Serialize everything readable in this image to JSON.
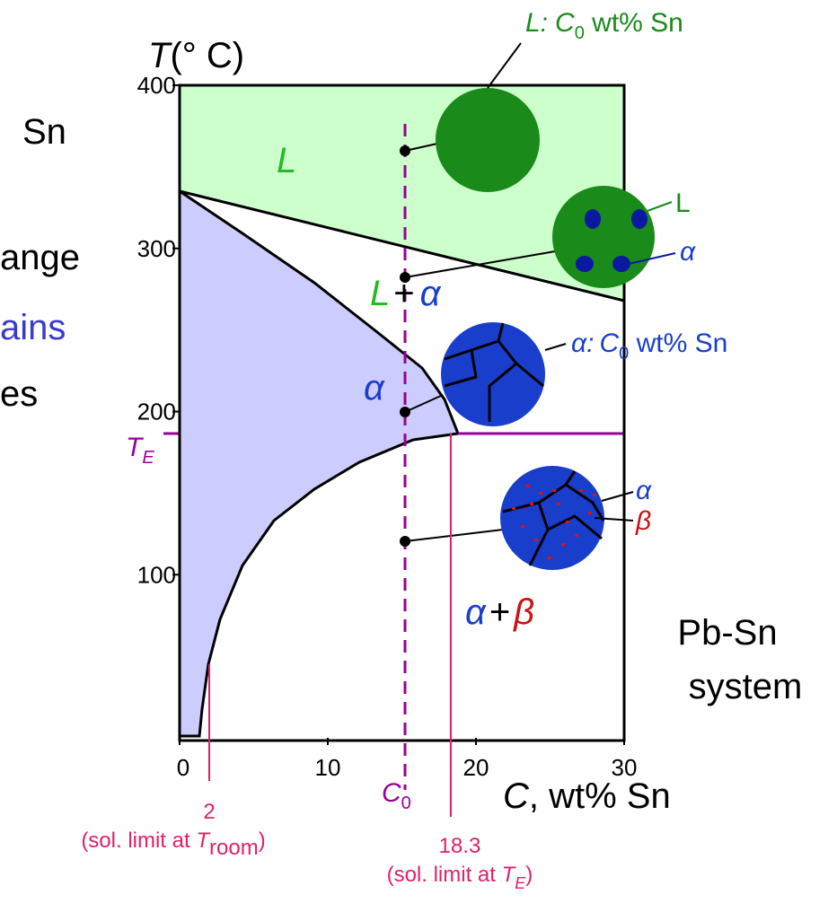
{
  "chart_data": {
    "type": "phase-diagram",
    "xlim": [
      0,
      30
    ],
    "ylim": [
      0,
      400
    ],
    "xticks": [
      0,
      10,
      20,
      30
    ],
    "yticks": [
      100,
      200,
      300,
      400
    ],
    "y_label": {
      "italic": "T",
      "rest": "(°  C)"
    },
    "x_label": {
      "italic": "C",
      "rest": ", wt% Sn"
    },
    "left_text": [
      "Sn",
      "ange",
      "ains",
      "es"
    ],
    "regions": {
      "liquid": "L",
      "two_phase": {
        "a": "L",
        "plus": "+",
        "b": "α"
      },
      "alpha": "α",
      "alpha_beta": {
        "a": "α",
        "plus": "+",
        "b": "β"
      }
    },
    "system": [
      "Pb-Sn",
      "system"
    ],
    "te": {
      "main": "T",
      "sub": "E"
    },
    "c0": {
      "main": "C",
      "sub": "0"
    },
    "callouts": {
      "liquid": {
        "a": "L:",
        "b": "C",
        "sub": "0",
        "c": " wt% Sn"
      },
      "l": "L",
      "alpha_small": "α",
      "alpha_full": {
        "a": "α:",
        "b": "C",
        "sub": "0",
        "c": " wt% Sn"
      },
      "alpha_low": "α",
      "beta_low": "β"
    },
    "markers": [
      {
        "value": 2,
        "note": "(sol. limit at ",
        "note_italic": "T",
        "note_sub": "room",
        "note_end": ")"
      },
      {
        "value": 18.3,
        "note": "(sol. limit at ",
        "note_italic": "T",
        "note_sub": "E",
        "note_end": ")"
      }
    ]
  }
}
